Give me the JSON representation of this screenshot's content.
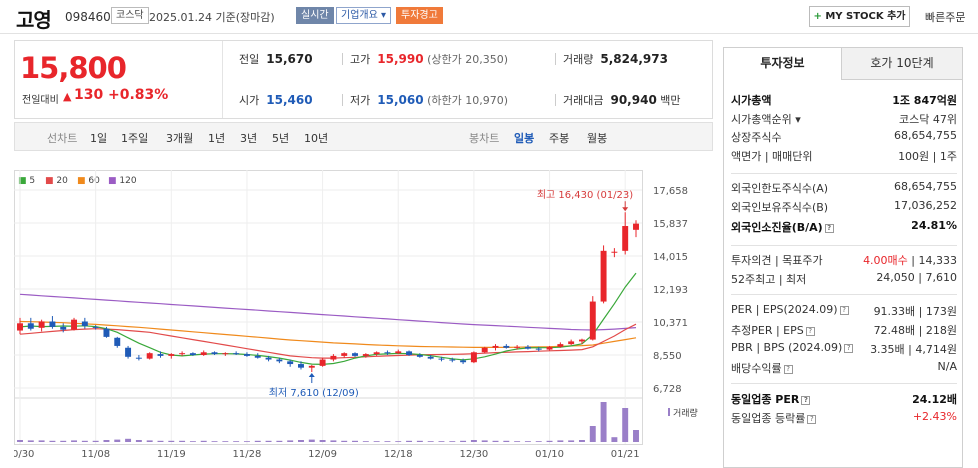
{
  "header": {
    "name": "고영",
    "code": "098460",
    "market": "코스닥",
    "date": "2025.01.24 기준(장마감)",
    "realtime": "실시간",
    "company_info": "기업개요 ▾",
    "warning": "투자경고",
    "mystock_plus": "+",
    "mystock_label": "MY STOCK 추가",
    "quick_order": "빠른주문"
  },
  "summary": {
    "price": "15,800",
    "change_label": "전일대비",
    "change_arrow": "▲",
    "change_amount": "130",
    "change_percent": "+0.83%",
    "prev_close_label": "전일",
    "prev_close": "15,670",
    "high_label": "고가",
    "high": "15,990",
    "upper_limit": "(상한가 20,350)",
    "volume_label": "거래량",
    "volume": "5,824,973",
    "open_label": "시가",
    "open": "15,460",
    "low_label": "저가",
    "low": "15,060",
    "lower_limit": "(하한가 10,970)",
    "amount_label": "거래대금",
    "amount": "90,940",
    "amount_unit": "백만"
  },
  "period_bar": {
    "line_chart_label": "선차트",
    "periods": [
      "1일",
      "1주일",
      "3개월",
      "1년",
      "3년",
      "5년",
      "10년"
    ],
    "candle_chart_label": "봉차트",
    "candles": [
      "일봉",
      "주봉",
      "월봉"
    ],
    "active_candle": "일봉"
  },
  "chart_data": {
    "type": "candlestick",
    "moving_averages": [
      {
        "name": "5",
        "color": "#3aa83a"
      },
      {
        "name": "20",
        "color": "#e24a4a"
      },
      {
        "name": "60",
        "color": "#f08a1c"
      },
      {
        "name": "120",
        "color": "#9b5cc4"
      }
    ],
    "y_ticks": [
      17658,
      15837,
      14015,
      12193,
      10371,
      8550,
      6728
    ],
    "ylim": [
      6728,
      17658
    ],
    "x_labels": [
      "10/30",
      "11/08",
      "11/19",
      "11/28",
      "12/09",
      "12/18",
      "12/30",
      "01/10",
      "01/21"
    ],
    "x_label_index": [
      0,
      7,
      14,
      21,
      28,
      35,
      42,
      49,
      56
    ],
    "high_annotation": "최고 16,430 (01/23)",
    "low_annotation": "최저 7,610 (12/09)",
    "volume_label": "거래량",
    "candles": [
      {
        "o": 9900,
        "h": 10600,
        "l": 9700,
        "c": 10300
      },
      {
        "o": 10300,
        "h": 10600,
        "l": 9900,
        "c": 10000
      },
      {
        "o": 10050,
        "h": 10500,
        "l": 9850,
        "c": 10400
      },
      {
        "o": 10400,
        "h": 10700,
        "l": 10000,
        "c": 10100
      },
      {
        "o": 10100,
        "h": 10300,
        "l": 9800,
        "c": 9950
      },
      {
        "o": 9950,
        "h": 10600,
        "l": 9900,
        "c": 10500
      },
      {
        "o": 10400,
        "h": 10600,
        "l": 10000,
        "c": 10150
      },
      {
        "o": 10100,
        "h": 10200,
        "l": 9950,
        "c": 10050
      },
      {
        "o": 10000,
        "h": 10100,
        "l": 9500,
        "c": 9550
      },
      {
        "o": 9500,
        "h": 9550,
        "l": 8950,
        "c": 9050
      },
      {
        "o": 8950,
        "h": 9050,
        "l": 8350,
        "c": 8450
      },
      {
        "o": 8400,
        "h": 8550,
        "l": 8250,
        "c": 8350
      },
      {
        "o": 8350,
        "h": 8700,
        "l": 8300,
        "c": 8650
      },
      {
        "o": 8600,
        "h": 8750,
        "l": 8400,
        "c": 8500
      },
      {
        "o": 8500,
        "h": 8650,
        "l": 8350,
        "c": 8600
      },
      {
        "o": 8600,
        "h": 8750,
        "l": 8500,
        "c": 8650
      },
      {
        "o": 8650,
        "h": 8700,
        "l": 8500,
        "c": 8550
      },
      {
        "o": 8550,
        "h": 8800,
        "l": 8500,
        "c": 8700
      },
      {
        "o": 8700,
        "h": 8750,
        "l": 8550,
        "c": 8600
      },
      {
        "o": 8600,
        "h": 8700,
        "l": 8500,
        "c": 8650
      },
      {
        "o": 8650,
        "h": 8750,
        "l": 8550,
        "c": 8600
      },
      {
        "o": 8600,
        "h": 8700,
        "l": 8450,
        "c": 8500
      },
      {
        "o": 8500,
        "h": 8650,
        "l": 8350,
        "c": 8400
      },
      {
        "o": 8400,
        "h": 8500,
        "l": 8200,
        "c": 8300
      },
      {
        "o": 8300,
        "h": 8400,
        "l": 8100,
        "c": 8200
      },
      {
        "o": 8200,
        "h": 8300,
        "l": 7900,
        "c": 8050
      },
      {
        "o": 8050,
        "h": 8200,
        "l": 7750,
        "c": 7850
      },
      {
        "o": 7850,
        "h": 8000,
        "l": 7610,
        "c": 7950
      },
      {
        "o": 7950,
        "h": 8400,
        "l": 7900,
        "c": 8300
      },
      {
        "o": 8300,
        "h": 8600,
        "l": 8200,
        "c": 8500
      },
      {
        "o": 8500,
        "h": 8700,
        "l": 8400,
        "c": 8650
      },
      {
        "o": 8650,
        "h": 8700,
        "l": 8450,
        "c": 8500
      },
      {
        "o": 8500,
        "h": 8650,
        "l": 8400,
        "c": 8600
      },
      {
        "o": 8600,
        "h": 8750,
        "l": 8500,
        "c": 8700
      },
      {
        "o": 8700,
        "h": 8800,
        "l": 8550,
        "c": 8650
      },
      {
        "o": 8650,
        "h": 8850,
        "l": 8600,
        "c": 8750
      },
      {
        "o": 8750,
        "h": 8800,
        "l": 8500,
        "c": 8550
      },
      {
        "o": 8550,
        "h": 8650,
        "l": 8400,
        "c": 8450
      },
      {
        "o": 8450,
        "h": 8550,
        "l": 8300,
        "c": 8350
      },
      {
        "o": 8350,
        "h": 8450,
        "l": 8200,
        "c": 8300
      },
      {
        "o": 8300,
        "h": 8400,
        "l": 8150,
        "c": 8250
      },
      {
        "o": 8250,
        "h": 8350,
        "l": 8050,
        "c": 8150
      },
      {
        "o": 8150,
        "h": 8750,
        "l": 8100,
        "c": 8700
      },
      {
        "o": 8700,
        "h": 9000,
        "l": 8650,
        "c": 8950
      },
      {
        "o": 8950,
        "h": 9150,
        "l": 8800,
        "c": 9050
      },
      {
        "o": 9050,
        "h": 9150,
        "l": 8900,
        "c": 8950
      },
      {
        "o": 8950,
        "h": 9100,
        "l": 8850,
        "c": 9000
      },
      {
        "o": 9000,
        "h": 9100,
        "l": 8850,
        "c": 8900
      },
      {
        "o": 8900,
        "h": 9000,
        "l": 8750,
        "c": 8850
      },
      {
        "o": 8850,
        "h": 9050,
        "l": 8800,
        "c": 9000
      },
      {
        "o": 9000,
        "h": 9250,
        "l": 8950,
        "c": 9150
      },
      {
        "o": 9150,
        "h": 9400,
        "l": 9100,
        "c": 9300
      },
      {
        "o": 9300,
        "h": 9450,
        "l": 9150,
        "c": 9400
      },
      {
        "o": 9400,
        "h": 11800,
        "l": 9350,
        "c": 11500
      },
      {
        "o": 11500,
        "h": 14600,
        "l": 11400,
        "c": 14300
      },
      {
        "o": 14200,
        "h": 14450,
        "l": 13950,
        "c": 14250
      },
      {
        "o": 14300,
        "h": 16430,
        "l": 14100,
        "c": 15670
      },
      {
        "o": 15460,
        "h": 15990,
        "l": 15060,
        "c": 15800
      }
    ],
    "volume_scale": 1,
    "volumes": [
      0.05,
      0.04,
      0.04,
      0.03,
      0.03,
      0.04,
      0.03,
      0.03,
      0.05,
      0.06,
      0.08,
      0.05,
      0.04,
      0.03,
      0.03,
      0.03,
      0.02,
      0.03,
      0.02,
      0.02,
      0.02,
      0.02,
      0.03,
      0.03,
      0.03,
      0.04,
      0.05,
      0.06,
      0.05,
      0.04,
      0.03,
      0.03,
      0.02,
      0.02,
      0.02,
      0.02,
      0.03,
      0.03,
      0.02,
      0.02,
      0.02,
      0.03,
      0.05,
      0.04,
      0.03,
      0.03,
      0.02,
      0.02,
      0.02,
      0.03,
      0.04,
      0.04,
      0.05,
      0.4,
      1.0,
      0.12,
      0.85,
      0.3
    ],
    "ma5": [
      10100,
      10150,
      10120,
      10130,
      10150,
      10140,
      10160,
      10120,
      10000,
      9800,
      9500,
      9200,
      8950,
      8700,
      8550,
      8500,
      8550,
      8600,
      8620,
      8620,
      8610,
      8580,
      8530,
      8460,
      8380,
      8270,
      8140,
      8050,
      8030,
      8080,
      8200,
      8380,
      8500,
      8590,
      8610,
      8640,
      8620,
      8580,
      8510,
      8420,
      8340,
      8280,
      8340,
      8450,
      8600,
      8770,
      8880,
      8940,
      8950,
      8950,
      8980,
      9050,
      9170,
      9670,
      10530,
      11380,
      12300,
      13070
    ],
    "ma20": [
      9700,
      9750,
      9800,
      9850,
      9900,
      9950,
      9980,
      10000,
      9980,
      9950,
      9900,
      9850,
      9800,
      9700,
      9600,
      9500,
      9400,
      9300,
      9200,
      9100,
      9000,
      8900,
      8800,
      8700,
      8600,
      8500,
      8450,
      8400,
      8380,
      8380,
      8400,
      8420,
      8450,
      8480,
      8500,
      8520,
      8540,
      8560,
      8570,
      8580,
      8590,
      8600,
      8620,
      8650,
      8680,
      8700,
      8720,
      8740,
      8760,
      8780,
      8800,
      8820,
      8850,
      9000,
      9300,
      9600,
      9950,
      10250
    ],
    "ma60": [
      10400,
      10390,
      10370,
      10350,
      10330,
      10300,
      10270,
      10240,
      10200,
      10160,
      10120,
      10080,
      10030,
      9980,
      9930,
      9880,
      9830,
      9780,
      9730,
      9680,
      9630,
      9580,
      9530,
      9480,
      9430,
      9380,
      9340,
      9300,
      9260,
      9220,
      9190,
      9160,
      9130,
      9100,
      9080,
      9060,
      9040,
      9020,
      9010,
      9000,
      8990,
      8980,
      8970,
      8970,
      8970,
      8970,
      8980,
      8990,
      9000,
      9010,
      9030,
      9050,
      9070,
      9100,
      9200,
      9300,
      9400,
      9500
    ],
    "ma120": [
      11900,
      11860,
      11820,
      11780,
      11740,
      11700,
      11660,
      11620,
      11580,
      11540,
      11500,
      11460,
      11420,
      11380,
      11340,
      11300,
      11260,
      11220,
      11180,
      11140,
      11100,
      11060,
      11020,
      10980,
      10940,
      10900,
      10860,
      10820,
      10780,
      10740,
      10700,
      10660,
      10620,
      10580,
      10540,
      10500,
      10460,
      10420,
      10380,
      10340,
      10300,
      10260,
      10230,
      10200,
      10170,
      10140,
      10110,
      10080,
      10050,
      10020,
      9990,
      9960,
      9940,
      9930,
      9950,
      9980,
      10020,
      10060
    ]
  },
  "right_panel": {
    "tab_invest": "투자정보",
    "tab_hoga": "호가 10단계",
    "rows": [
      {
        "k": "시가총액",
        "v": "1조 847억원",
        "bold": true
      },
      {
        "k": "시가총액순위 ▾",
        "v": "코스닥 47위"
      },
      {
        "k": "상장주식수",
        "v": "68,654,755"
      },
      {
        "k": "액면가 | 매매단위",
        "v": "100원 | 1주"
      },
      {
        "k": "외국인한도주식수(A)",
        "v": "68,654,755"
      },
      {
        "k": "외국인보유주식수(B)",
        "v": "17,036,252"
      },
      {
        "k": "외국인소진율(B/A)",
        "v": "24.81%",
        "bold": true,
        "q": true
      },
      {
        "k": "투자의견 | 목표주가",
        "v_red": "4.00매수",
        "v": " | 14,333"
      },
      {
        "k": "52주최고 | 최저",
        "v": "24,050 | 7,610"
      },
      {
        "k": "PER | EPS(2024.09)",
        "v": "91.33배 | 173원",
        "q": true
      },
      {
        "k": "추정PER | EPS",
        "v": "72.48배 | 218원",
        "q": true
      },
      {
        "k": "PBR | BPS (2024.09)",
        "v": "3.35배 | 4,714원",
        "q": true
      },
      {
        "k": "배당수익률",
        "v": "N/A",
        "q": true
      },
      {
        "k": "동일업종 PER",
        "v": "24.12배",
        "bold": true,
        "q": true
      },
      {
        "k": "동일업종 등락률",
        "v_red": "+2.43%",
        "v": "",
        "q": true
      }
    ]
  }
}
